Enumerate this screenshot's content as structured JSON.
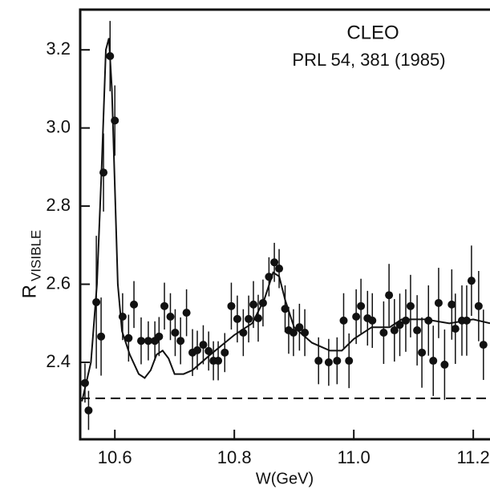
{
  "chart_data": {
    "type": "scatter",
    "title": "CLEO",
    "subtitle": "PRL 54, 381 (1985)",
    "x_label": "W(GeV)",
    "y_label": "R",
    "y_label_subscript": "VISIBLE",
    "xlim": [
      10.542,
      11.228
    ],
    "ylim": [
      2.203,
      3.303
    ],
    "xticks": [
      10.6,
      10.8,
      {
        "value": 11,
        "label": "11.0"
      },
      11.2
    ],
    "yticks": [
      2.4,
      2.6,
      2.8,
      {
        "value": 3,
        "label": "3.0"
      },
      3.2
    ],
    "color": "#111111",
    "series": [
      {
        "x": [
          10.55,
          10.556,
          10.569,
          10.577,
          10.581,
          10.592,
          10.6,
          10.613,
          10.623,
          10.632,
          10.644,
          10.656,
          10.667,
          10.674,
          10.683,
          10.693,
          10.701,
          10.71,
          10.72,
          10.73,
          10.738,
          10.748,
          10.757,
          10.765,
          10.773,
          10.784,
          10.795,
          10.805,
          10.815,
          10.824,
          10.832,
          10.84,
          10.848,
          10.858,
          10.867,
          10.875,
          10.885,
          10.891,
          10.899,
          10.909,
          10.918,
          10.941,
          10.958,
          10.972,
          10.983,
          10.992,
          11.004,
          11.012,
          11.023,
          11.031,
          11.05,
          11.059,
          11.068,
          11.077,
          11.087,
          11.095,
          11.106,
          11.114,
          11.125,
          11.133,
          11.142,
          11.152,
          11.164,
          11.17,
          11.181,
          11.189,
          11.197,
          11.209,
          11.217
        ],
        "values": [
          2.347,
          2.277,
          2.554,
          2.466,
          2.886,
          3.184,
          3.019,
          2.517,
          2.462,
          2.548,
          2.455,
          2.455,
          2.455,
          2.466,
          2.544,
          2.517,
          2.476,
          2.455,
          2.527,
          2.425,
          2.431,
          2.445,
          2.429,
          2.404,
          2.404,
          2.425,
          2.544,
          2.511,
          2.476,
          2.511,
          2.548,
          2.513,
          2.552,
          2.619,
          2.656,
          2.64,
          2.537,
          2.482,
          2.476,
          2.49,
          2.476,
          2.404,
          2.4,
          2.404,
          2.507,
          2.404,
          2.517,
          2.544,
          2.513,
          2.507,
          2.476,
          2.572,
          2.482,
          2.496,
          2.507,
          2.544,
          2.482,
          2.425,
          2.507,
          2.404,
          2.552,
          2.394,
          2.548,
          2.486,
          2.507,
          2.507,
          2.609,
          2.544,
          2.445
        ],
        "errors": [
          0.05,
          0.05,
          0.17,
          0.1,
          0.1,
          0.09,
          0.09,
          0.06,
          0.06,
          0.06,
          0.06,
          0.05,
          0.05,
          0.05,
          0.06,
          0.06,
          0.06,
          0.06,
          0.06,
          0.06,
          0.05,
          0.05,
          0.05,
          0.05,
          0.05,
          0.05,
          0.06,
          0.06,
          0.06,
          0.06,
          0.06,
          0.06,
          0.06,
          0.05,
          0.05,
          0.05,
          0.06,
          0.06,
          0.06,
          0.06,
          0.06,
          0.06,
          0.06,
          0.06,
          0.07,
          0.07,
          0.07,
          0.07,
          0.07,
          0.07,
          0.08,
          0.08,
          0.08,
          0.08,
          0.08,
          0.08,
          0.09,
          0.09,
          0.09,
          0.09,
          0.09,
          0.09,
          0.09,
          0.09,
          0.09,
          0.09,
          0.09,
          0.09,
          0.09
        ]
      }
    ],
    "fit": {
      "x": [
        10.545,
        10.56,
        10.57,
        10.578,
        10.585,
        10.59,
        10.595,
        10.6,
        10.605,
        10.612,
        10.625,
        10.64,
        10.65,
        10.66,
        10.67,
        10.68,
        10.69,
        10.7,
        10.715,
        10.73,
        10.76,
        10.8,
        10.83,
        10.85,
        10.865,
        10.875,
        10.885,
        10.9,
        10.93,
        10.96,
        10.98,
        11.0,
        11.03,
        11.06,
        11.08,
        11.12,
        11.16,
        11.2,
        11.228
      ],
      "values": [
        2.3,
        2.4,
        2.6,
        2.9,
        3.2,
        3.23,
        3.1,
        2.85,
        2.6,
        2.48,
        2.42,
        2.37,
        2.36,
        2.38,
        2.42,
        2.43,
        2.41,
        2.37,
        2.37,
        2.38,
        2.42,
        2.47,
        2.5,
        2.56,
        2.63,
        2.62,
        2.56,
        2.49,
        2.45,
        2.43,
        2.43,
        2.46,
        2.49,
        2.49,
        2.51,
        2.51,
        2.5,
        2.51,
        2.5
      ]
    },
    "baseline": 2.308
  }
}
